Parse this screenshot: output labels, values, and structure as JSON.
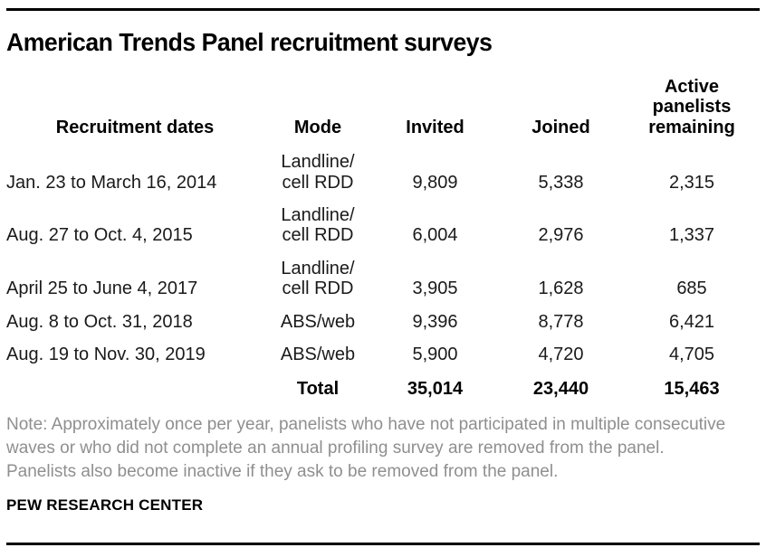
{
  "title": "American Trends Panel recruitment surveys",
  "chart_data": {
    "type": "table",
    "columns": [
      "Recruitment dates",
      "Mode",
      "Invited",
      "Joined",
      "Active panelists remaining"
    ],
    "rows": [
      [
        "Jan. 23 to March 16, 2014",
        "Landline/ cell RDD",
        "9,809",
        "5,338",
        "2,315"
      ],
      [
        "Aug. 27 to Oct. 4, 2015",
        "Landline/ cell RDD",
        "6,004",
        "2,976",
        "1,337"
      ],
      [
        "April 25 to June 4, 2017",
        "Landline/ cell RDD",
        "3,905",
        "1,628",
        "685"
      ],
      [
        "Aug. 8 to Oct. 31, 2018",
        "ABS/web",
        "9,396",
        "8,778",
        "6,421"
      ],
      [
        "Aug. 19 to Nov. 30, 2019",
        "ABS/web",
        "5,900",
        "4,720",
        "4,705"
      ]
    ],
    "total_row": {
      "label": "Total",
      "invited": "35,014",
      "joined": "23,440",
      "active_remaining": "15,463"
    }
  },
  "note": "Note: Approximately once per year, panelists who have not participated in multiple consecutive waves or who did not complete an annual profiling survey are removed from the panel. Panelists also become inactive if they ask to be removed from the panel.",
  "source": "PEW RESEARCH CENTER",
  "colors": {
    "text": "#1a1a1a",
    "note_gray": "#8f8f8f",
    "rule_black": "#000000"
  }
}
